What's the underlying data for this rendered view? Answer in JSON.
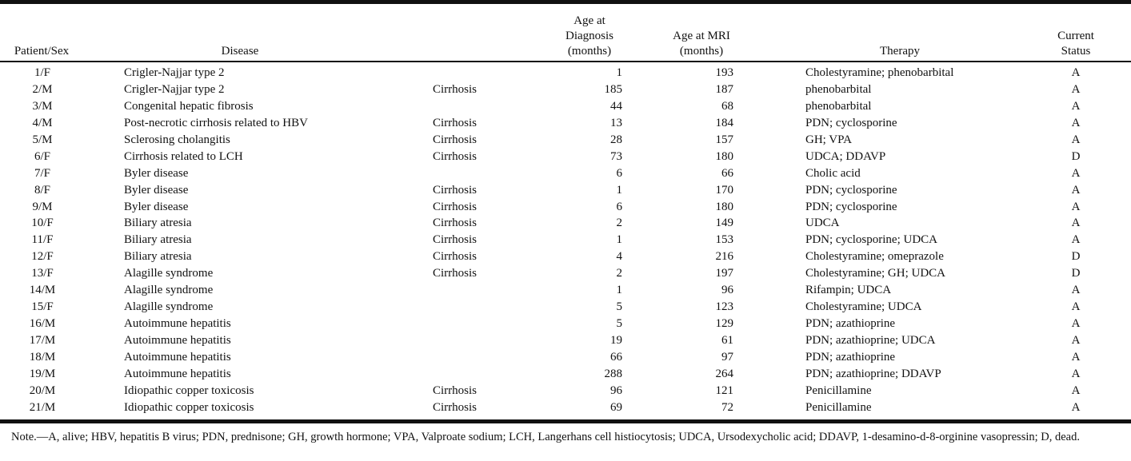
{
  "table": {
    "headers": {
      "patient_sex": "Patient/Sex",
      "disease": "Disease",
      "age_diagnosis": [
        "Age at",
        "Diagnosis",
        "(months)"
      ],
      "age_mri": [
        "Age at MRI",
        "(months)"
      ],
      "therapy": "Therapy",
      "current_status": [
        "Current",
        "Status"
      ]
    },
    "rows": [
      {
        "patient": "1/F",
        "disease": "Crigler-Najjar type 2",
        "cirrhosis": "",
        "age_dx": "1",
        "age_mri": "193",
        "therapy": "Cholestyramine; phenobarbital",
        "status": "A"
      },
      {
        "patient": "2/M",
        "disease": "Crigler-Najjar type 2",
        "cirrhosis": "Cirrhosis",
        "age_dx": "185",
        "age_mri": "187",
        "therapy": "phenobarbital",
        "status": "A"
      },
      {
        "patient": "3/M",
        "disease": "Congenital hepatic fibrosis",
        "cirrhosis": "",
        "age_dx": "44",
        "age_mri": "68",
        "therapy": "phenobarbital",
        "status": "A"
      },
      {
        "patient": "4/M",
        "disease": "Post-necrotic cirrhosis related to HBV",
        "cirrhosis": "Cirrhosis",
        "age_dx": "13",
        "age_mri": "184",
        "therapy": "PDN; cyclosporine",
        "status": "A"
      },
      {
        "patient": "5/M",
        "disease": "Sclerosing cholangitis",
        "cirrhosis": "Cirrhosis",
        "age_dx": "28",
        "age_mri": "157",
        "therapy": "GH; VPA",
        "status": "A"
      },
      {
        "patient": "6/F",
        "disease": "Cirrhosis related to LCH",
        "cirrhosis": "Cirrhosis",
        "age_dx": "73",
        "age_mri": "180",
        "therapy": "UDCA; DDAVP",
        "status": "D"
      },
      {
        "patient": "7/F",
        "disease": "Byler disease",
        "cirrhosis": "",
        "age_dx": "6",
        "age_mri": "66",
        "therapy": "Cholic acid",
        "status": "A"
      },
      {
        "patient": "8/F",
        "disease": "Byler disease",
        "cirrhosis": "Cirrhosis",
        "age_dx": "1",
        "age_mri": "170",
        "therapy": "PDN; cyclosporine",
        "status": "A"
      },
      {
        "patient": "9/M",
        "disease": "Byler disease",
        "cirrhosis": "Cirrhosis",
        "age_dx": "6",
        "age_mri": "180",
        "therapy": "PDN; cyclosporine",
        "status": "A"
      },
      {
        "patient": "10/F",
        "disease": "Biliary atresia",
        "cirrhosis": "Cirrhosis",
        "age_dx": "2",
        "age_mri": "149",
        "therapy": "UDCA",
        "status": "A"
      },
      {
        "patient": "11/F",
        "disease": "Biliary atresia",
        "cirrhosis": "Cirrhosis",
        "age_dx": "1",
        "age_mri": "153",
        "therapy": "PDN; cyclosporine; UDCA",
        "status": "A"
      },
      {
        "patient": "12/F",
        "disease": "Biliary atresia",
        "cirrhosis": "Cirrhosis",
        "age_dx": "4",
        "age_mri": "216",
        "therapy": "Cholestyramine; omeprazole",
        "status": "D"
      },
      {
        "patient": "13/F",
        "disease": "Alagille syndrome",
        "cirrhosis": "Cirrhosis",
        "age_dx": "2",
        "age_mri": "197",
        "therapy": "Cholestyramine; GH; UDCA",
        "status": "D"
      },
      {
        "patient": "14/M",
        "disease": "Alagille syndrome",
        "cirrhosis": "",
        "age_dx": "1",
        "age_mri": "96",
        "therapy": "Rifampin; UDCA",
        "status": "A"
      },
      {
        "patient": "15/F",
        "disease": "Alagille syndrome",
        "cirrhosis": "",
        "age_dx": "5",
        "age_mri": "123",
        "therapy": "Cholestyramine; UDCA",
        "status": "A"
      },
      {
        "patient": "16/M",
        "disease": "Autoimmune hepatitis",
        "cirrhosis": "",
        "age_dx": "5",
        "age_mri": "129",
        "therapy": "PDN; azathioprine",
        "status": "A"
      },
      {
        "patient": "17/M",
        "disease": "Autoimmune hepatitis",
        "cirrhosis": "",
        "age_dx": "19",
        "age_mri": "61",
        "therapy": "PDN; azathioprine; UDCA",
        "status": "A"
      },
      {
        "patient": "18/M",
        "disease": "Autoimmune hepatitis",
        "cirrhosis": "",
        "age_dx": "66",
        "age_mri": "97",
        "therapy": "PDN; azathioprine",
        "status": "A"
      },
      {
        "patient": "19/M",
        "disease": "Autoimmune hepatitis",
        "cirrhosis": "",
        "age_dx": "288",
        "age_mri": "264",
        "therapy": "PDN; azathioprine; DDAVP",
        "status": "A"
      },
      {
        "patient": "20/M",
        "disease": "Idiopathic copper toxicosis",
        "cirrhosis": "Cirrhosis",
        "age_dx": "96",
        "age_mri": "121",
        "therapy": "Penicillamine",
        "status": "A"
      },
      {
        "patient": "21/M",
        "disease": "Idiopathic copper toxicosis",
        "cirrhosis": "Cirrhosis",
        "age_dx": "69",
        "age_mri": "72",
        "therapy": "Penicillamine",
        "status": "A"
      }
    ]
  },
  "note": "Note.—A, alive; HBV, hepatitis B virus; PDN, prednisone; GH, growth hormone; VPA, Valproate sodium; LCH, Langerhans cell histiocytosis; UDCA, Ursodexycholic acid; DDAVP, 1-desamino-d-8-orginine vasopressin; D, dead."
}
